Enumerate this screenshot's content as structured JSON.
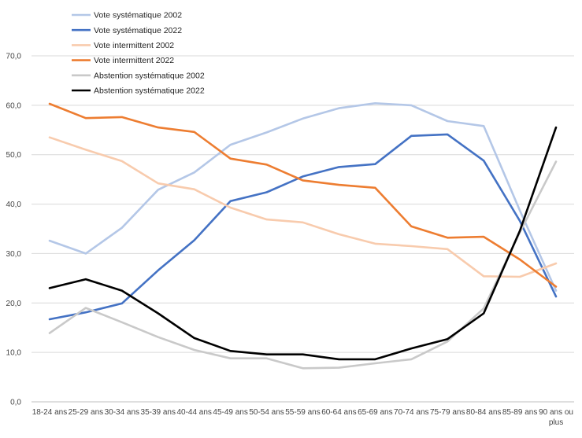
{
  "chart_data": {
    "type": "line",
    "title": "",
    "xlabel": "",
    "ylabel": "",
    "ylim": [
      0,
      70
    ],
    "yticks": [
      "0,0",
      "10,0",
      "20,0",
      "30,0",
      "40,0",
      "50,0",
      "60,0",
      "70,0"
    ],
    "grid": true,
    "legend_position": "top-left",
    "categories": [
      "18-24 ans",
      "25-29 ans",
      "30-34 ans",
      "35-39 ans",
      "40-44 ans",
      "45-49 ans",
      "50-54 ans",
      "55-59 ans",
      "60-64 ans",
      "65-69 ans",
      "70-74 ans",
      "75-79 ans",
      "80-84 ans",
      "85-89 ans",
      "90 ans ou plus"
    ],
    "series": [
      {
        "name": "Vote systématique 2002",
        "color": "#b4c7e7",
        "values": [
          32.6,
          30.0,
          35.2,
          42.9,
          46.4,
          52.0,
          54.5,
          57.3,
          59.4,
          60.4,
          60.0,
          56.8,
          55.8,
          38.7,
          22.5
        ]
      },
      {
        "name": "Vote systématique 2022",
        "color": "#4472c4",
        "values": [
          16.7,
          18.1,
          19.9,
          26.6,
          32.7,
          40.6,
          42.4,
          45.6,
          47.5,
          48.1,
          53.8,
          54.1,
          48.8,
          36.6,
          21.3
        ]
      },
      {
        "name": "Vote intermittent 2002",
        "color": "#f8cbad",
        "values": [
          53.5,
          51.0,
          48.7,
          44.2,
          43.0,
          39.3,
          36.9,
          36.3,
          33.9,
          32.0,
          31.5,
          30.9,
          25.4,
          25.3,
          28.0
        ]
      },
      {
        "name": "Vote intermittent 2022",
        "color": "#ed7d31",
        "values": [
          60.3,
          57.4,
          57.6,
          55.5,
          54.6,
          49.2,
          48.0,
          44.8,
          43.9,
          43.3,
          35.5,
          33.2,
          33.4,
          28.8,
          23.3
        ]
      },
      {
        "name": "Abstention systématique 2002",
        "color": "#c9c9c9",
        "values": [
          13.9,
          19.0,
          16.1,
          13.1,
          10.5,
          8.8,
          8.8,
          6.8,
          6.9,
          7.8,
          8.6,
          12.2,
          18.9,
          34.3,
          48.6
        ]
      },
      {
        "name": "Abstention systématique 2022",
        "color": "#000000",
        "values": [
          23.0,
          24.8,
          22.5,
          17.9,
          12.9,
          10.3,
          9.6,
          9.6,
          8.6,
          8.6,
          10.8,
          12.7,
          17.9,
          34.6,
          55.5
        ]
      }
    ]
  }
}
